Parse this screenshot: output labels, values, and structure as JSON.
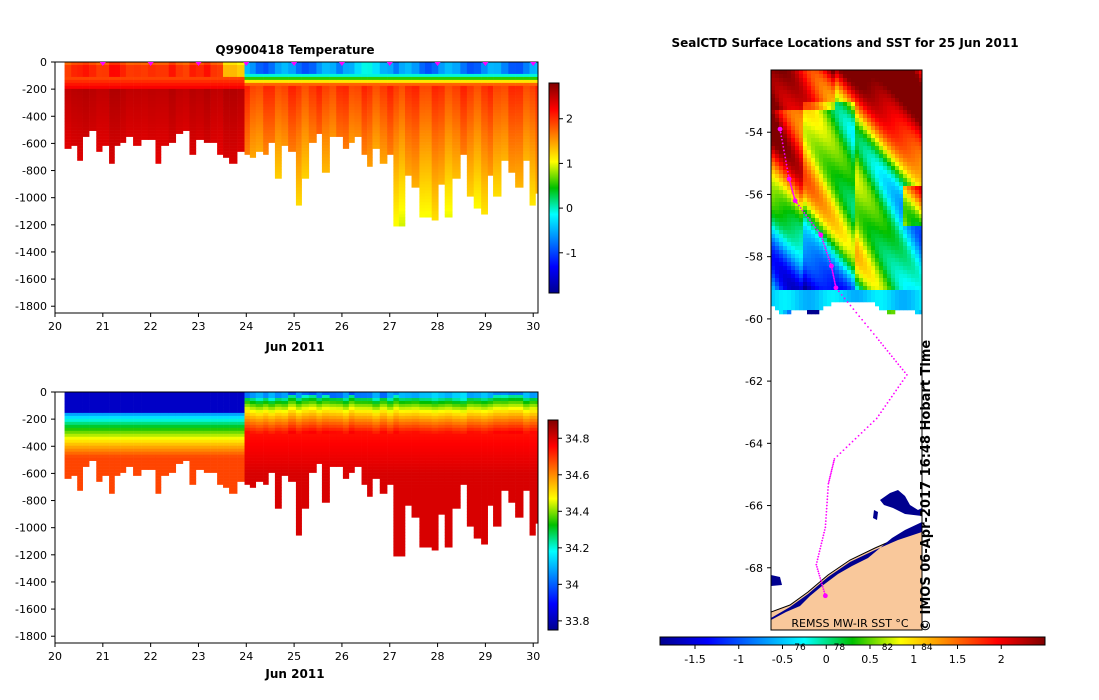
{
  "chart_data": [
    {
      "type": "heatmap",
      "title": "Q9900418  Temperature",
      "xlabel": "Jun 2011",
      "ylabel": "",
      "x_ticks": [
        "20",
        "21",
        "22",
        "23",
        "24",
        "25",
        "26",
        "27",
        "28",
        "29",
        "30"
      ],
      "xlim": [
        20,
        30.1
      ],
      "y_ticks": [
        "0",
        "-200",
        "-400",
        "-600",
        "-800",
        "-1000",
        "-1200",
        "-1400",
        "-1600",
        "-1800"
      ],
      "ylim": [
        -1850,
        0
      ],
      "colorbar_ticks": [
        "-1",
        "0",
        "1",
        "2"
      ],
      "colorbar_range": [
        -1.9,
        2.8
      ],
      "profile_markers_days": [
        21,
        22,
        23,
        24,
        25,
        26,
        27,
        28,
        29,
        30
      ],
      "profiles_summary": {
        "surface_mixed_layer_temp_before_day24": 2.0,
        "surface_mixed_layer_temp_after_day24": -0.6,
        "deep_temp_days_20_24": 2.4,
        "deep_temp_days_24_30": 1.5,
        "max_depth_m_range": [
          -1200,
          -560
        ]
      }
    },
    {
      "type": "heatmap",
      "title": "",
      "xlabel": "Jun 2011",
      "ylabel": "",
      "x_ticks": [
        "20",
        "21",
        "22",
        "23",
        "24",
        "25",
        "26",
        "27",
        "28",
        "29",
        "30"
      ],
      "xlim": [
        20,
        30.1
      ],
      "y_ticks": [
        "0",
        "-200",
        "-400",
        "-600",
        "-800",
        "-1000",
        "-1200",
        "-1400",
        "-1600",
        "-1800"
      ],
      "ylim": [
        -1850,
        0
      ],
      "colorbar_ticks": [
        "33.8",
        "34",
        "34.2",
        "34.4",
        "34.6",
        "34.8"
      ],
      "colorbar_range": [
        33.75,
        34.9
      ],
      "profiles_summary": {
        "surface_salinity": 33.9,
        "deep_salinity_days_20_24": 34.6,
        "deep_salinity_days_24_30": 34.75
      }
    },
    {
      "type": "heatmap",
      "title": "SealCTD Surface Locations and SST for 25 Jun 2011",
      "xlabel": "",
      "ylabel": "",
      "y_ticks": [
        "-54",
        "-56",
        "-58",
        "-60",
        "-62",
        "-64",
        "-66",
        "-68"
      ],
      "ylim": [
        -70,
        -52
      ],
      "colorbar_ticks": [
        "-1.5",
        "-1",
        "-0.5",
        "0",
        "0.5",
        "1",
        "1.5",
        "2"
      ],
      "colorbar_extra_labels": [
        "76",
        "78",
        "82",
        "84"
      ],
      "colorbar_range": [
        -1.9,
        2.5
      ],
      "colorbar_label": "REMSS MW-IR SST °C",
      "watermark": "© IMOS 06-Apr-2017 16:48 Hobart Time",
      "seal_track_lat": [
        -53.9,
        -55.5,
        -56.2,
        -57.3,
        -58.3,
        -59.0,
        -60.6,
        -61.8,
        -63.2,
        -64.5,
        -65.3,
        -66.7,
        -67.9,
        -68.9
      ]
    }
  ]
}
